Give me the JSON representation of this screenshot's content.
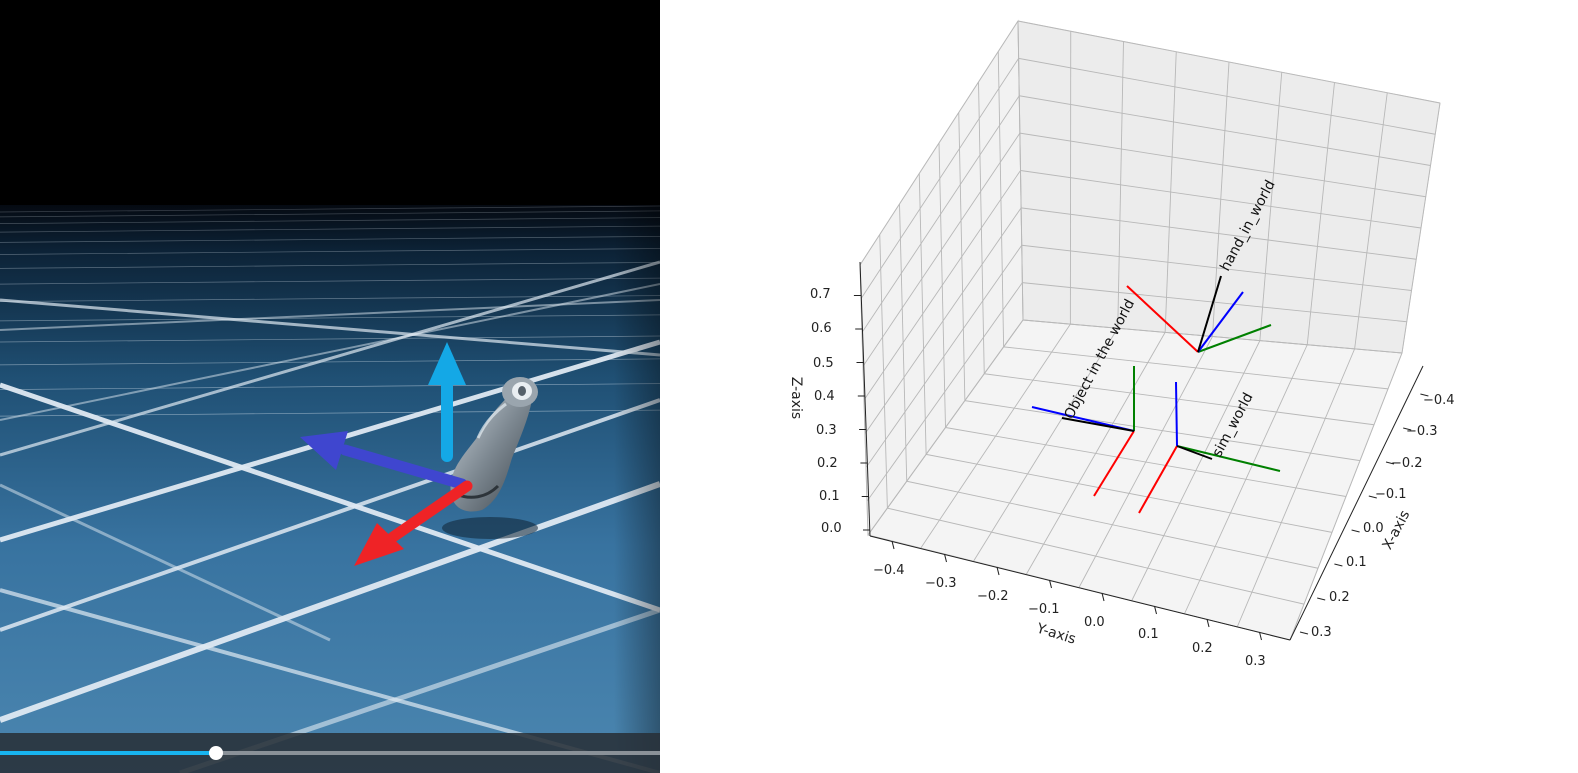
{
  "video": {
    "progress": 0.327
  },
  "scene": {
    "arrow_colors": {
      "up": "#14a8e6",
      "left": "#3f46cf",
      "forward": "#ef2326"
    }
  },
  "plot": {
    "zlabel": "Z-axis",
    "ylabel": "Y-axis",
    "xlabel": "X-axis",
    "z_ticks": [
      "0.0",
      "0.1",
      "0.2",
      "0.3",
      "0.4",
      "0.5",
      "0.6",
      "0.7"
    ],
    "y_ticks": [
      "−0.4",
      "−0.3",
      "−0.2",
      "−0.1",
      "0.0",
      "0.1",
      "0.2",
      "0.3"
    ],
    "x_ticks": [
      "−0.4",
      "−0.3",
      "−0.2",
      "−0.1",
      "0.0",
      "0.1",
      "0.2",
      "0.3"
    ],
    "frames": [
      {
        "name": "hand_in_world"
      },
      {
        "name": "Object in the world"
      },
      {
        "name": "sim_world"
      }
    ],
    "axis_colors": {
      "x": "#ff0000",
      "y": "#008000",
      "z": "#0000ff",
      "label_line": "#000000"
    }
  }
}
